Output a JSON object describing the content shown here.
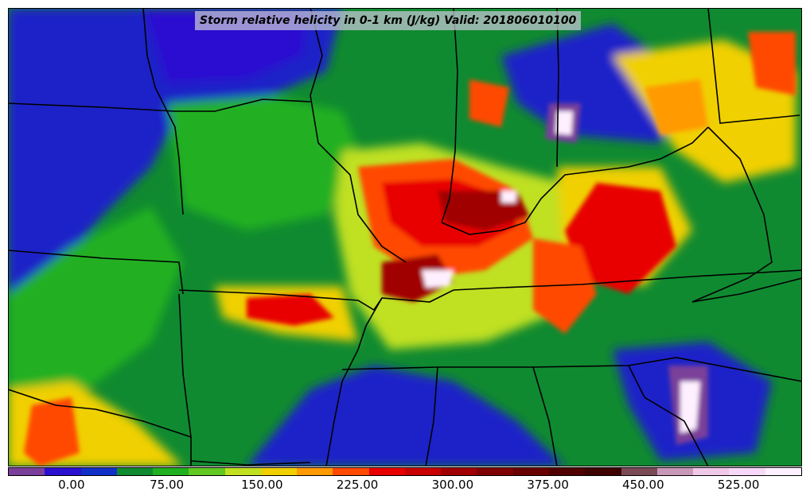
{
  "title": "Storm relative helicity in 0-1 km (J/kg) Valid: 201806010100",
  "colorbar": {
    "colors": [
      "#7a3f9a",
      "#2a10d0",
      "#1030c8",
      "#108a30",
      "#20b020",
      "#60c820",
      "#c0e020",
      "#f0d000",
      "#ff9a00",
      "#ff4a00",
      "#e80000",
      "#c80000",
      "#a00000",
      "#800000",
      "#680000",
      "#500000",
      "#3e0000",
      "#7a4a55",
      "#c898b8",
      "#f0c8e8",
      "#f8d8f8",
      "#fff0ff"
    ],
    "ticks": [
      {
        "label": "0.00",
        "value": 0
      },
      {
        "label": "75.00",
        "value": 75
      },
      {
        "label": "150.00",
        "value": 150
      },
      {
        "label": "225.00",
        "value": 225
      },
      {
        "label": "300.00",
        "value": 300
      },
      {
        "label": "375.00",
        "value": 375
      },
      {
        "label": "450.00",
        "value": 450
      },
      {
        "label": "525.00",
        "value": 525
      }
    ],
    "range": [
      -50,
      575
    ]
  }
}
